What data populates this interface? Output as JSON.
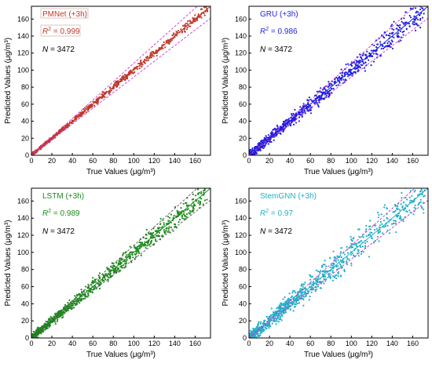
{
  "figure": {
    "background": "#ffffff"
  },
  "chart_data": [
    {
      "type": "scatter",
      "model": "PMNet (+3h)",
      "r2_label": "R",
      "r2_sup": "2",
      "r2_value": "= 0.999",
      "n_label": "N",
      "n_value": "= 3472",
      "color": "#c0392b",
      "label_color": "#c0392b",
      "xlabel": "True Values (μg/m³)",
      "ylabel": "Predicted Values (μg/m³)",
      "xlim": [
        0,
        175
      ],
      "ylim": [
        0,
        175
      ],
      "xticks": [
        "0",
        "20",
        "40",
        "60",
        "80",
        "100",
        "120",
        "140",
        "160"
      ],
      "yticks": [
        "0",
        "20",
        "40",
        "60",
        "80",
        "100",
        "120",
        "140",
        "160"
      ],
      "band_color": "#cc33cc",
      "band_lower_slope": 0.92,
      "band_upper_slope": 1.08,
      "fit_slope": 1.0,
      "noise": 2.0,
      "count": 700,
      "seed": 11,
      "label_box": true
    },
    {
      "type": "scatter",
      "model": "GRU (+3h)",
      "r2_label": "R",
      "r2_sup": "2",
      "r2_value": "= 0.986",
      "n_label": "N",
      "n_value": "= 3472",
      "color": "#1f1fe0",
      "label_color": "#1f1fe0",
      "xlabel": "True Values (μg/m³)",
      "ylabel": "Predicted Values (μg/m³)",
      "xlim": [
        0,
        175
      ],
      "ylim": [
        0,
        175
      ],
      "xticks": [
        "0",
        "20",
        "40",
        "60",
        "80",
        "100",
        "120",
        "140",
        "160"
      ],
      "yticks": [
        "0",
        "20",
        "40",
        "60",
        "80",
        "100",
        "120",
        "140",
        "160"
      ],
      "band_color": "#cc33cc",
      "band_lower_slope": 0.92,
      "band_upper_slope": 1.08,
      "fit_slope": 1.0,
      "noise": 5.5,
      "count": 900,
      "seed": 23,
      "label_box": false
    },
    {
      "type": "scatter",
      "model": "LSTM (+3h)",
      "r2_label": "R",
      "r2_sup": "2",
      "r2_value": "= 0.989",
      "n_label": "N",
      "n_value": "= 3472",
      "color": "#1e8a1e",
      "label_color": "#1e8a1e",
      "xlabel": "True Values (μg/m³)",
      "ylabel": "Predicted Values (μg/m³)",
      "xlim": [
        0,
        175
      ],
      "ylim": [
        0,
        175
      ],
      "xticks": [
        "0",
        "20",
        "40",
        "60",
        "80",
        "100",
        "120",
        "140",
        "160"
      ],
      "yticks": [
        "0",
        "20",
        "40",
        "60",
        "80",
        "100",
        "120",
        "140",
        "160"
      ],
      "band_color": "#555555",
      "band_lower_slope": 0.92,
      "band_upper_slope": 1.08,
      "fit_slope": 1.0,
      "noise": 5.0,
      "count": 900,
      "seed": 37,
      "label_box": false
    },
    {
      "type": "scatter",
      "model": "StemGNN (+3h)",
      "r2_label": "R",
      "r2_sup": "2",
      "r2_value": "= 0.97",
      "n_label": "N",
      "n_value": "= 3472",
      "color": "#22b0c8",
      "label_color": "#22b0c8",
      "xlabel": "True Values (μg/m³)",
      "ylabel": "Predicted Values (μg/m³)",
      "xlim": [
        0,
        175
      ],
      "ylim": [
        0,
        175
      ],
      "xticks": [
        "0",
        "20",
        "40",
        "60",
        "80",
        "100",
        "120",
        "140",
        "160"
      ],
      "yticks": [
        "0",
        "20",
        "40",
        "60",
        "80",
        "100",
        "120",
        "140",
        "160"
      ],
      "band_color": "#cc33cc",
      "band_lower_slope": 0.92,
      "band_upper_slope": 1.08,
      "fit_slope": 1.0,
      "noise": 8.0,
      "count": 900,
      "seed": 51,
      "label_box": false
    }
  ]
}
